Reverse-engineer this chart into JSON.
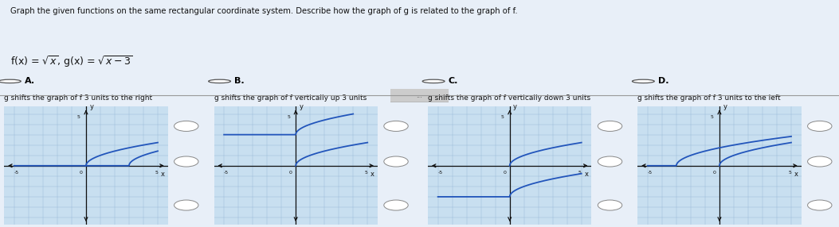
{
  "title_line1": "Graph the given functions on the same rectangular coordinate system. Describe how the graph of g is related to the graph of f.",
  "func_text": "f(x) = √x, g(x) = √x−3",
  "options": [
    "A.",
    "B.",
    "C.",
    "D."
  ],
  "descriptions": [
    "g shifts the graph of f 3 units to the right",
    "g shifts the graph of f vertically up 3 units",
    "g shifts the graph of f vertically down 3 units",
    "g shifts the graph of f 3 units to the left"
  ],
  "background_color": "#c8dff0",
  "grid_color": "#9bbbd8",
  "curve_color": "#2255bb",
  "axis_color": "#111111",
  "text_color": "#111111",
  "page_bg": "#e8eff8",
  "xlim": [
    -5,
    5
  ],
  "ylim": [
    -5,
    5
  ],
  "fig_width": 10.53,
  "fig_height": 2.86
}
